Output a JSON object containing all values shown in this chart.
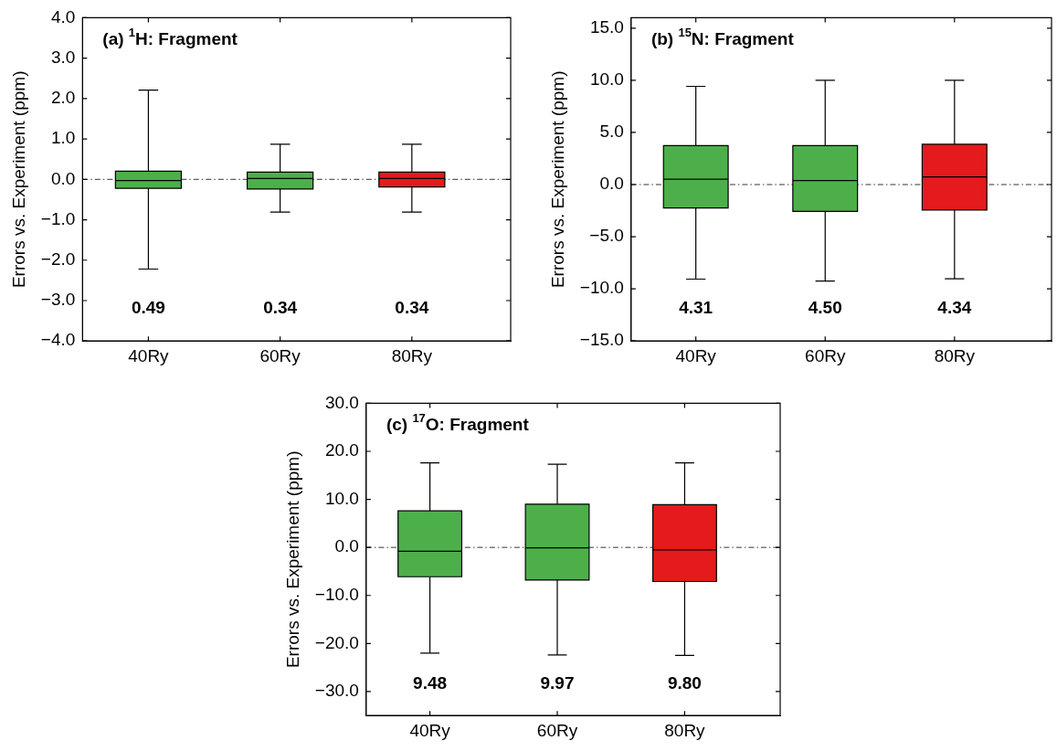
{
  "chart_data": [
    {
      "type": "box",
      "title": "(a) $^{1}$H: Fragment",
      "ylabel": "Errors vs. Experiment (ppm)",
      "categories": [
        "40Ry",
        "60Ry",
        "80Ry"
      ],
      "colors": [
        "#4daf4a",
        "#4daf4a",
        "#e41a1c"
      ],
      "boxes": [
        {
          "low": -2.22,
          "q1": -0.22,
          "median": -0.03,
          "q3": 0.2,
          "high": 2.21
        },
        {
          "low": -0.81,
          "q1": -0.24,
          "median": 0.02,
          "q3": 0.18,
          "high": 0.87
        },
        {
          "low": -0.81,
          "q1": -0.19,
          "median": 0.02,
          "q3": 0.18,
          "high": 0.87
        }
      ],
      "ylim": [
        -4,
        4
      ],
      "yticks": [
        {
          "value": -4,
          "label": "−4.0"
        },
        {
          "value": -3,
          "label": "−3.0"
        },
        {
          "value": -2,
          "label": "−2.0"
        },
        {
          "value": -1,
          "label": "−1.0"
        },
        {
          "value": 0,
          "label": "0.0"
        },
        {
          "value": 1,
          "label": "1.0"
        },
        {
          "value": 2,
          "label": "2.0"
        },
        {
          "value": 3,
          "label": "3.0"
        },
        {
          "value": 4,
          "label": "4.0"
        }
      ],
      "ref_lines": [
        {
          "axis": "y",
          "value": 0,
          "color": "#000000",
          "line_style": "dashdot"
        }
      ],
      "annotations": [
        "0.49",
        "0.34",
        "0.34"
      ],
      "grid": false,
      "legend": false
    },
    {
      "type": "box",
      "title": "(b) $^{15}$N: Fragment",
      "ylabel": "Errors vs. Experiment (ppm)",
      "categories": [
        "40Ry",
        "60Ry",
        "80Ry"
      ],
      "colors": [
        "#4daf4a",
        "#4daf4a",
        "#e41a1c"
      ],
      "boxes": [
        {
          "low": -9.07,
          "q1": -2.25,
          "median": 0.51,
          "q3": 3.73,
          "high": 9.42
        },
        {
          "low": -9.26,
          "q1": -2.57,
          "median": 0.39,
          "q3": 3.73,
          "high": 10.0
        },
        {
          "low": -9.04,
          "q1": -2.44,
          "median": 0.74,
          "q3": 3.86,
          "high": 10.0
        }
      ],
      "ylim": [
        -15,
        16
      ],
      "yticks": [
        {
          "value": -15,
          "label": "−15.0"
        },
        {
          "value": -10,
          "label": "−10.0"
        },
        {
          "value": -5,
          "label": "−5.0"
        },
        {
          "value": 0,
          "label": "0.0"
        },
        {
          "value": 5,
          "label": "5.0"
        },
        {
          "value": 10,
          "label": "10.0"
        },
        {
          "value": 15,
          "label": "15.0"
        }
      ],
      "ref_lines": [
        {
          "axis": "y",
          "value": 0,
          "color": "#000000",
          "line_style": "dashdot"
        }
      ],
      "annotations": [
        "4.31",
        "4.50",
        "4.34"
      ],
      "grid": false,
      "legend": false
    },
    {
      "type": "box",
      "title": "(c) $^{17}$O: Fragment",
      "ylabel": "Errors vs. Experiment (ppm)",
      "categories": [
        "40Ry",
        "60Ry",
        "80Ry"
      ],
      "colors": [
        "#4daf4a",
        "#4daf4a",
        "#e41a1c"
      ],
      "boxes": [
        {
          "low": -22.0,
          "q1": -6.1,
          "median": -0.8,
          "q3": 7.6,
          "high": 17.6
        },
        {
          "low": -22.4,
          "q1": -6.8,
          "median": -0.1,
          "q3": 9.0,
          "high": 17.3
        },
        {
          "low": -22.5,
          "q1": -7.1,
          "median": -0.5,
          "q3": 8.9,
          "high": 17.6
        }
      ],
      "ylim": [
        -35,
        30
      ],
      "yticks": [
        {
          "value": -30,
          "label": "−30.0"
        },
        {
          "value": -20,
          "label": "−20.0"
        },
        {
          "value": -10,
          "label": "−10.0"
        },
        {
          "value": 0,
          "label": "0.0"
        },
        {
          "value": 10,
          "label": "10.0"
        },
        {
          "value": 20,
          "label": "20.0"
        },
        {
          "value": 30,
          "label": "30.0"
        }
      ],
      "ref_lines": [
        {
          "axis": "y",
          "value": 0,
          "color": "#000000",
          "line_style": "dashdot"
        }
      ],
      "annotations": [
        "9.48",
        "9.97",
        "9.80"
      ],
      "grid": false,
      "legend": false
    }
  ]
}
